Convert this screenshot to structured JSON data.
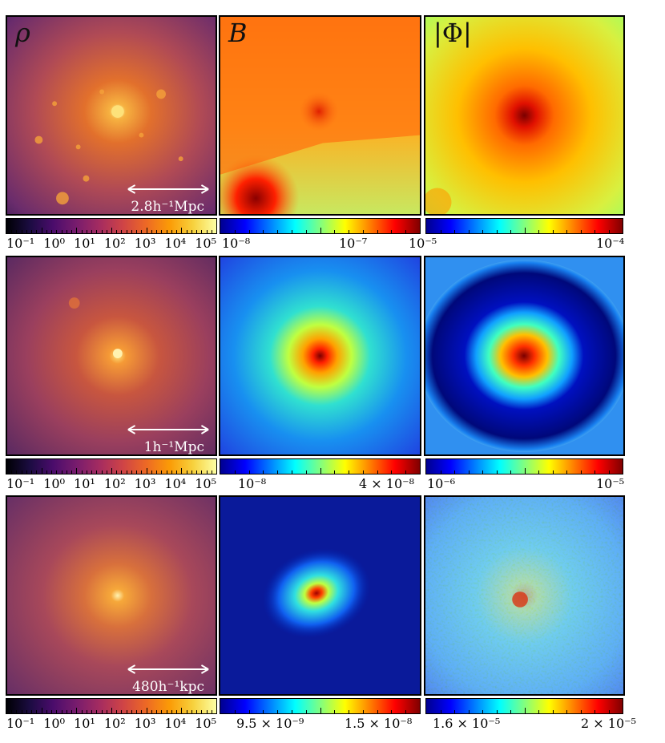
{
  "rows": [
    {
      "rho": {
        "label": "ρ",
        "scale": "2.8h⁻¹Mpc",
        "colorbar": [
          "10⁻¹",
          "10⁰",
          "10¹",
          "10²",
          "10³",
          "10⁴",
          "10⁵"
        ]
      },
      "B": {
        "label": "B",
        "colorbar": [
          "10⁻⁸",
          "10⁻⁷"
        ]
      },
      "phi": {
        "label": "|Φ|",
        "colorbar": [
          "10⁻⁵",
          "10⁻⁴"
        ]
      }
    },
    {
      "rho": {
        "label": "",
        "scale": "1h⁻¹Mpc",
        "colorbar": [
          "10⁻¹",
          "10⁰",
          "10¹",
          "10²",
          "10³",
          "10⁴",
          "10⁵"
        ]
      },
      "B": {
        "label": "",
        "colorbar": [
          "10⁻⁸",
          "4 × 10⁻⁸"
        ]
      },
      "phi": {
        "label": "",
        "colorbar": [
          "10⁻⁶",
          "10⁻⁵"
        ]
      }
    },
    {
      "rho": {
        "label": "",
        "scale": "480h⁻¹kpc",
        "colorbar": [
          "10⁻¹",
          "10⁰",
          "10¹",
          "10²",
          "10³",
          "10⁴",
          "10⁵"
        ]
      },
      "B": {
        "label": "",
        "colorbar": [
          "9.5 × 10⁻⁹",
          "1.5 × 10⁻⁸"
        ]
      },
      "phi": {
        "label": "",
        "colorbar": [
          "1.6 × 10⁻⁵",
          "2 × 10⁻⁵"
        ]
      }
    }
  ],
  "colormaps": {
    "rho": "inferno",
    "B": "jet",
    "phi": "jet"
  }
}
